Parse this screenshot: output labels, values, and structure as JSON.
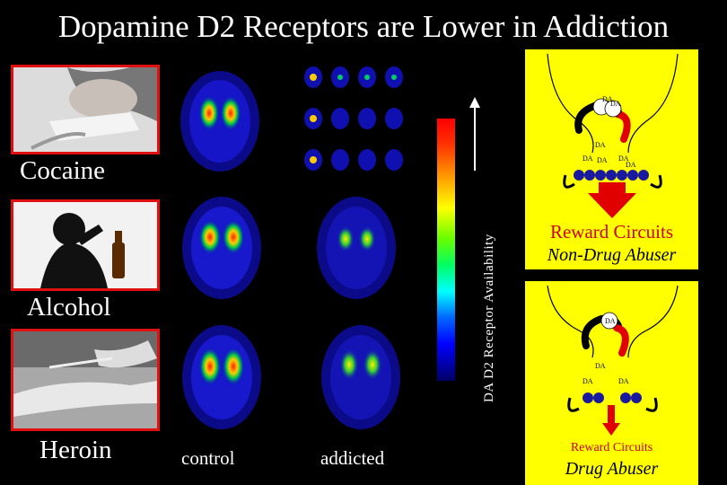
{
  "slide": {
    "title": "Dopamine D2 Receptors are Lower in Addiction"
  },
  "rows": [
    {
      "label": "Cocaine"
    },
    {
      "label": "Alcohol"
    },
    {
      "label": "Heroin"
    }
  ],
  "columns": {
    "control": "control",
    "addicted": "addicted"
  },
  "colorbar": {
    "label": "DA D2 Receptor Availability"
  },
  "panels": {
    "non_drug": {
      "title": "Reward Circuits",
      "subtitle": "Non-Drug Abuser",
      "da_labels": [
        "DA",
        "DA",
        "DA",
        "DA",
        "DA",
        "DA",
        "DA"
      ]
    },
    "drug": {
      "title": "Reward Circuits",
      "subtitle": "Drug Abuser",
      "da_labels": [
        "DA",
        "DA",
        "DA",
        "DA"
      ]
    }
  },
  "colors": {
    "accent_red": "#e01010",
    "panel_bg": "#ffff00",
    "receptor_blue": "#1a1aa0"
  }
}
